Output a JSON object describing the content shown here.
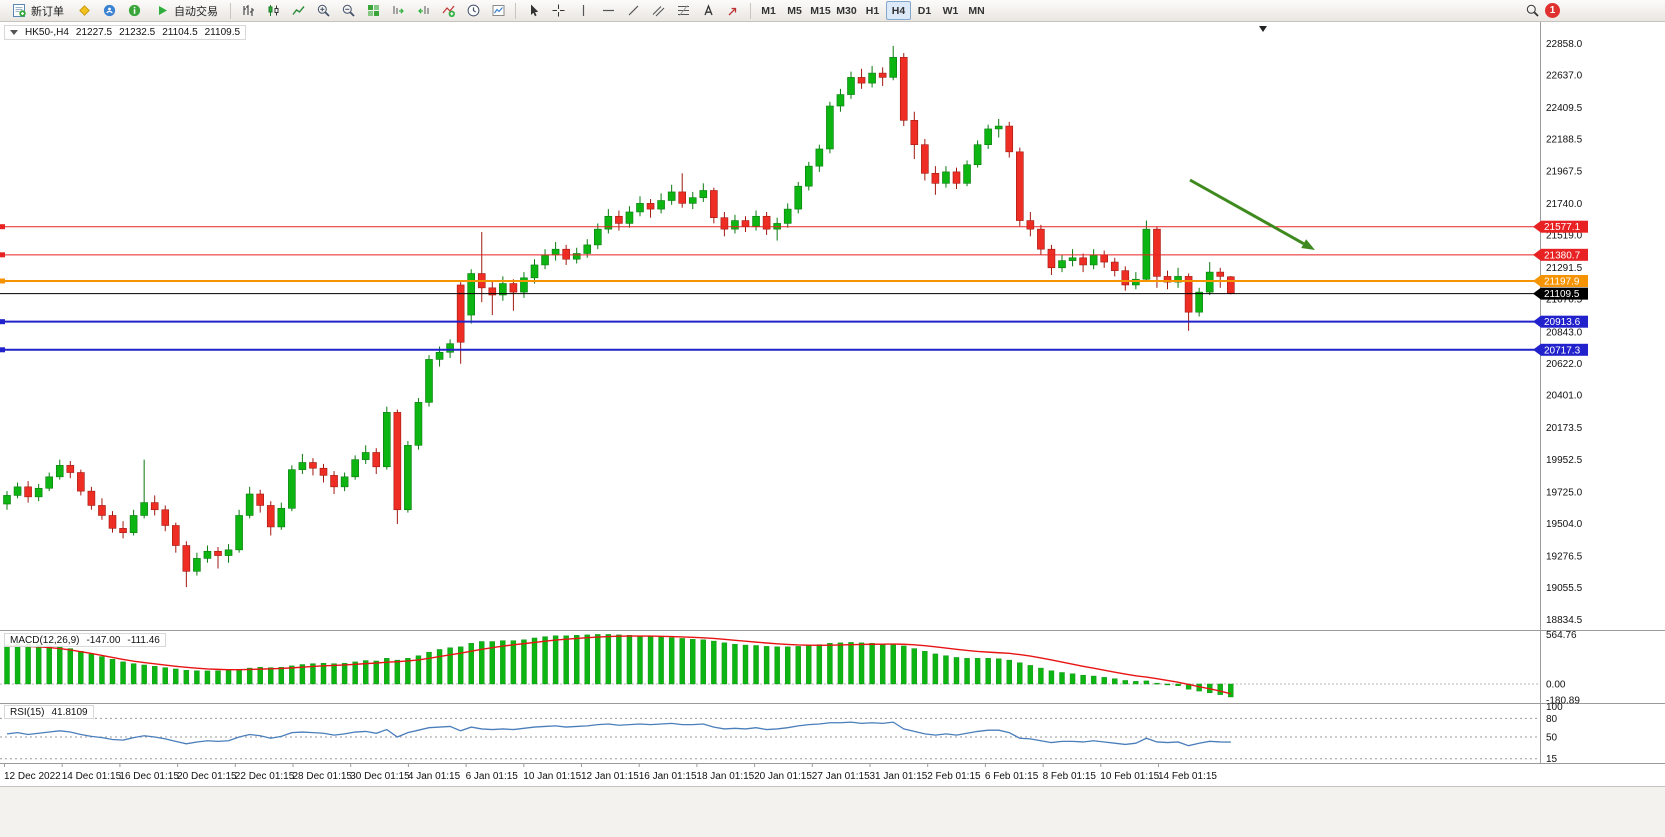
{
  "toolbar": {
    "new_order_label": "新订单",
    "autotrading_label": "自动交易",
    "timeframes": [
      "M1",
      "M5",
      "M15",
      "M30",
      "H1",
      "H4",
      "D1",
      "W1",
      "MN"
    ],
    "active_timeframe": "H4",
    "notification_count": "1"
  },
  "chart_header": {
    "symbol_period": "HK50-,H4",
    "open": "21227.5",
    "high": "21232.5",
    "low": "21104.5",
    "close": "21109.5"
  },
  "price_axis": {
    "ticks": [
      "22858.0",
      "22637.0",
      "22409.5",
      "22188.5",
      "21967.5",
      "21740.0",
      "21519.0",
      "21291.5",
      "21070.5",
      "20843.0",
      "20622.0",
      "20401.0",
      "20173.5",
      "19952.5",
      "19725.0",
      "19504.0",
      "19276.5",
      "19055.5",
      "18834.5"
    ]
  },
  "hlines": [
    {
      "price": 21577.1,
      "label": "21577.1",
      "color": "#e82222",
      "width": 1
    },
    {
      "price": 21380.7,
      "label": "21380.7",
      "color": "#e82222",
      "width": 1
    },
    {
      "price": 21197.9,
      "label": "21197.9",
      "color": "#f59300",
      "width": 2
    },
    {
      "price": 20913.6,
      "label": "20913.6",
      "color": "#2222cc",
      "width": 2
    },
    {
      "price": 20717.3,
      "label": "20717.3",
      "color": "#2222cc",
      "width": 2
    }
  ],
  "current_price": {
    "price": 21109.5,
    "label": "21109.5",
    "color": "#000000"
  },
  "time_axis": {
    "labels": [
      "12 Dec 2022",
      "14 Dec 01:15",
      "16 Dec 01:15",
      "20 Dec 01:15",
      "22 Dec 01:15",
      "28 Dec 01:15",
      "30 Dec 01:15",
      "4 Jan 01:15",
      "6 Jan 01:15",
      "10 Jan 01:15",
      "12 Jan 01:15",
      "16 Jan 01:15",
      "18 Jan 01:15",
      "20 Jan 01:15",
      "27 Jan 01:15",
      "31 Jan 01:15",
      "2 Feb 01:15",
      "6 Feb 01:15",
      "8 Feb 01:15",
      "10 Feb 01:15",
      "14 Feb 01:15"
    ]
  },
  "annotations": [
    {
      "type": "arrow",
      "color": "#3f8a1f",
      "from": [
        1190,
        158
      ],
      "to": [
        1315,
        228
      ]
    }
  ],
  "chart_data": [
    {
      "type": "candlestick",
      "symbol": "HK50-",
      "timeframe": "H4",
      "up_color": "#0cb512",
      "down_color": "#ee2e24",
      "ylim": [
        18760,
        22965
      ],
      "candles": [
        [
          19640,
          19730,
          19600,
          19700
        ],
        [
          19700,
          19790,
          19680,
          19760
        ],
        [
          19760,
          19800,
          19650,
          19690
        ],
        [
          19690,
          19780,
          19660,
          19750
        ],
        [
          19750,
          19860,
          19730,
          19830
        ],
        [
          19830,
          19950,
          19810,
          19910
        ],
        [
          19910,
          19940,
          19820,
          19860
        ],
        [
          19860,
          19880,
          19700,
          19730
        ],
        [
          19730,
          19760,
          19600,
          19630
        ],
        [
          19630,
          19680,
          19530,
          19560
        ],
        [
          19560,
          19590,
          19440,
          19470
        ],
        [
          19470,
          19520,
          19400,
          19440
        ],
        [
          19440,
          19600,
          19420,
          19560
        ],
        [
          19560,
          19950,
          19540,
          19650
        ],
        [
          19650,
          19700,
          19560,
          19600
        ],
        [
          19600,
          19630,
          19450,
          19490
        ],
        [
          19490,
          19510,
          19300,
          19350
        ],
        [
          19350,
          19380,
          19060,
          19170
        ],
        [
          19170,
          19300,
          19140,
          19260
        ],
        [
          19260,
          19350,
          19230,
          19310
        ],
        [
          19310,
          19340,
          19190,
          19280
        ],
        [
          19280,
          19360,
          19230,
          19320
        ],
        [
          19320,
          19600,
          19300,
          19560
        ],
        [
          19560,
          19760,
          19540,
          19710
        ],
        [
          19710,
          19740,
          19580,
          19630
        ],
        [
          19630,
          19660,
          19420,
          19480
        ],
        [
          19480,
          19650,
          19460,
          19610
        ],
        [
          19610,
          19910,
          19590,
          19880
        ],
        [
          19880,
          19990,
          19850,
          19930
        ],
        [
          19930,
          19960,
          19840,
          19890
        ],
        [
          19890,
          19920,
          19790,
          19840
        ],
        [
          19840,
          19870,
          19710,
          19760
        ],
        [
          19760,
          19860,
          19730,
          19830
        ],
        [
          19830,
          19980,
          19810,
          19950
        ],
        [
          19950,
          20050,
          19920,
          20000
        ],
        [
          20000,
          20030,
          19850,
          19900
        ],
        [
          19900,
          20320,
          19880,
          20280
        ],
        [
          20280,
          20300,
          19500,
          19600
        ],
        [
          19600,
          20080,
          19580,
          20050
        ],
        [
          20050,
          20380,
          20020,
          20350
        ],
        [
          20350,
          20680,
          20320,
          20650
        ],
        [
          20650,
          20740,
          20600,
          20700
        ],
        [
          20700,
          20790,
          20660,
          20760
        ],
        [
          21170,
          21190,
          20620,
          20770
        ],
        [
          20960,
          21280,
          20900,
          21250
        ],
        [
          21250,
          21540,
          21050,
          21150
        ],
        [
          21150,
          21200,
          20960,
          21100
        ],
        [
          21100,
          21230,
          21060,
          21180
        ],
        [
          21180,
          21210,
          20990,
          21120
        ],
        [
          21120,
          21260,
          21080,
          21220
        ],
        [
          21220,
          21350,
          21180,
          21310
        ],
        [
          21310,
          21420,
          21280,
          21380
        ],
        [
          21380,
          21470,
          21340,
          21420
        ],
        [
          21420,
          21450,
          21310,
          21350
        ],
        [
          21350,
          21430,
          21320,
          21390
        ],
        [
          21390,
          21490,
          21360,
          21450
        ],
        [
          21450,
          21600,
          21420,
          21560
        ],
        [
          21560,
          21700,
          21530,
          21650
        ],
        [
          21650,
          21690,
          21550,
          21600
        ],
        [
          21600,
          21720,
          21570,
          21680
        ],
        [
          21680,
          21790,
          21650,
          21740
        ],
        [
          21740,
          21770,
          21640,
          21700
        ],
        [
          21700,
          21810,
          21670,
          21760
        ],
        [
          21760,
          21870,
          21730,
          21820
        ],
        [
          21820,
          21950,
          21710,
          21740
        ],
        [
          21740,
          21820,
          21700,
          21780
        ],
        [
          21780,
          21880,
          21750,
          21830
        ],
        [
          21830,
          21850,
          21600,
          21640
        ],
        [
          21640,
          21680,
          21510,
          21560
        ],
        [
          21560,
          21660,
          21530,
          21620
        ],
        [
          21620,
          21650,
          21540,
          21580
        ],
        [
          21580,
          21690,
          21550,
          21650
        ],
        [
          21650,
          21680,
          21520,
          21560
        ],
        [
          21560,
          21640,
          21480,
          21600
        ],
        [
          21600,
          21740,
          21570,
          21700
        ],
        [
          21700,
          21890,
          21670,
          21860
        ],
        [
          21860,
          22030,
          21830,
          22000
        ],
        [
          22000,
          22150,
          21960,
          22120
        ],
        [
          22120,
          22450,
          22090,
          22420
        ],
        [
          22420,
          22540,
          22380,
          22500
        ],
        [
          22500,
          22660,
          22470,
          22620
        ],
        [
          22620,
          22680,
          22540,
          22580
        ],
        [
          22580,
          22700,
          22550,
          22650
        ],
        [
          22650,
          22690,
          22560,
          22620
        ],
        [
          22620,
          22840,
          22600,
          22760
        ],
        [
          22760,
          22790,
          22280,
          22320
        ],
        [
          22320,
          22380,
          22050,
          22150
        ],
        [
          22150,
          22190,
          21900,
          21950
        ],
        [
          21950,
          22000,
          21800,
          21880
        ],
        [
          21880,
          22000,
          21850,
          21960
        ],
        [
          21960,
          21990,
          21840,
          21880
        ],
        [
          21880,
          22040,
          21860,
          22010
        ],
        [
          22010,
          22180,
          21990,
          22150
        ],
        [
          22150,
          22290,
          22120,
          22260
        ],
        [
          22260,
          22330,
          22200,
          22280
        ],
        [
          22280,
          22310,
          22060,
          22100
        ],
        [
          22100,
          22130,
          21580,
          21620
        ],
        [
          21620,
          21680,
          21510,
          21560
        ],
        [
          21560,
          21590,
          21380,
          21420
        ],
        [
          21420,
          21450,
          21240,
          21290
        ],
        [
          21290,
          21380,
          21260,
          21340
        ],
        [
          21340,
          21420,
          21300,
          21360
        ],
        [
          21360,
          21390,
          21260,
          21310
        ],
        [
          21310,
          21420,
          21280,
          21380
        ],
        [
          21380,
          21410,
          21290,
          21330
        ],
        [
          21330,
          21360,
          21230,
          21270
        ],
        [
          21270,
          21300,
          21130,
          21170
        ],
        [
          21170,
          21260,
          21140,
          21210
        ],
        [
          21210,
          21620,
          21190,
          21560
        ],
        [
          21560,
          21580,
          21150,
          21230
        ],
        [
          21230,
          21270,
          21140,
          21190
        ],
        [
          21190,
          21290,
          21150,
          21230
        ],
        [
          21230,
          21250,
          20850,
          20980
        ],
        [
          20980,
          21150,
          20950,
          21120
        ],
        [
          21120,
          21330,
          21100,
          21260
        ],
        [
          21260,
          21290,
          21150,
          21230
        ],
        [
          21227.5,
          21232.5,
          21104.5,
          21109.5
        ]
      ]
    },
    {
      "type": "bar",
      "name": "MACD(12,26,9)",
      "value": "-147.00",
      "signal_value": "-111.46",
      "colors": {
        "histogram": "#0cb512",
        "signal": "#e81414"
      },
      "axis": {
        "max": 564.76,
        "min": -180.89,
        "labels": [
          "564.76",
          "0.00",
          "-180.89"
        ]
      },
      "histogram": [
        440,
        455,
        450,
        445,
        435,
        420,
        400,
        370,
        340,
        310,
        280,
        250,
        230,
        215,
        200,
        185,
        170,
        155,
        150,
        148,
        150,
        155,
        165,
        180,
        190,
        185,
        190,
        205,
        220,
        230,
        235,
        230,
        235,
        250,
        265,
        260,
        290,
        270,
        290,
        320,
        360,
        390,
        410,
        420,
        460,
        480,
        480,
        490,
        490,
        500,
        520,
        535,
        545,
        545,
        550,
        555,
        560,
        560,
        555,
        550,
        545,
        535,
        530,
        525,
        515,
        505,
        500,
        485,
        465,
        450,
        440,
        435,
        425,
        420,
        420,
        425,
        435,
        445,
        460,
        465,
        470,
        465,
        460,
        450,
        450,
        430,
        400,
        370,
        340,
        320,
        300,
        290,
        290,
        290,
        285,
        270,
        240,
        210,
        180,
        150,
        130,
        115,
        100,
        90,
        75,
        60,
        40,
        30,
        35,
        10,
        -10,
        -20,
        -60,
        -80,
        -100,
        -120,
        -147
      ],
      "signal": [
        430,
        428,
        425,
        420,
        412,
        400,
        385,
        365,
        345,
        322,
        300,
        278,
        258,
        242,
        228,
        214,
        200,
        188,
        178,
        170,
        165,
        162,
        162,
        164,
        168,
        172,
        176,
        182,
        190,
        198,
        205,
        210,
        215,
        222,
        230,
        236,
        246,
        252,
        260,
        272,
        290,
        310,
        330,
        348,
        370,
        392,
        410,
        428,
        442,
        456,
        470,
        484,
        496,
        506,
        515,
        523,
        530,
        536,
        540,
        542,
        542,
        541,
        539,
        536,
        532,
        527,
        522,
        515,
        505,
        494,
        483,
        473,
        463,
        454,
        447,
        441,
        438,
        437,
        438,
        441,
        444,
        447,
        449,
        450,
        451,
        449,
        443,
        433,
        420,
        406,
        392,
        379,
        368,
        360,
        353,
        346,
        332,
        315,
        295,
        272,
        248,
        224,
        200,
        178,
        156,
        134,
        112,
        92,
        78,
        60,
        40,
        20,
        -5,
        -30,
        -55,
        -80,
        -111.46
      ]
    },
    {
      "type": "line",
      "name": "RSI(15)",
      "value": "41.8109",
      "color": "#4a7ebb",
      "range": [
        0,
        100
      ],
      "levels": [
        80,
        50,
        15
      ],
      "axis_labels": [
        "100",
        "80",
        "50",
        "15"
      ],
      "values": [
        55,
        57,
        54,
        56,
        58,
        60,
        58,
        54,
        51,
        49,
        46,
        45,
        49,
        52,
        50,
        47,
        43,
        39,
        42,
        44,
        43,
        44,
        50,
        54,
        52,
        48,
        51,
        57,
        58,
        57,
        56,
        53,
        55,
        58,
        59,
        56,
        62,
        50,
        57,
        61,
        65,
        66,
        67,
        60,
        66,
        63,
        62,
        63,
        62,
        64,
        66,
        67,
        68,
        66,
        67,
        68,
        70,
        71,
        69,
        70,
        71,
        70,
        71,
        72,
        70,
        70,
        71,
        66,
        63,
        64,
        63,
        65,
        62,
        63,
        65,
        68,
        70,
        71,
        73,
        73,
        74,
        72,
        73,
        72,
        74,
        63,
        59,
        55,
        53,
        55,
        53,
        56,
        59,
        61,
        61,
        57,
        48,
        47,
        44,
        41,
        43,
        43,
        42,
        44,
        42,
        40,
        38,
        40,
        48,
        42,
        41,
        42,
        36,
        40,
        43,
        42,
        41.81
      ]
    }
  ]
}
